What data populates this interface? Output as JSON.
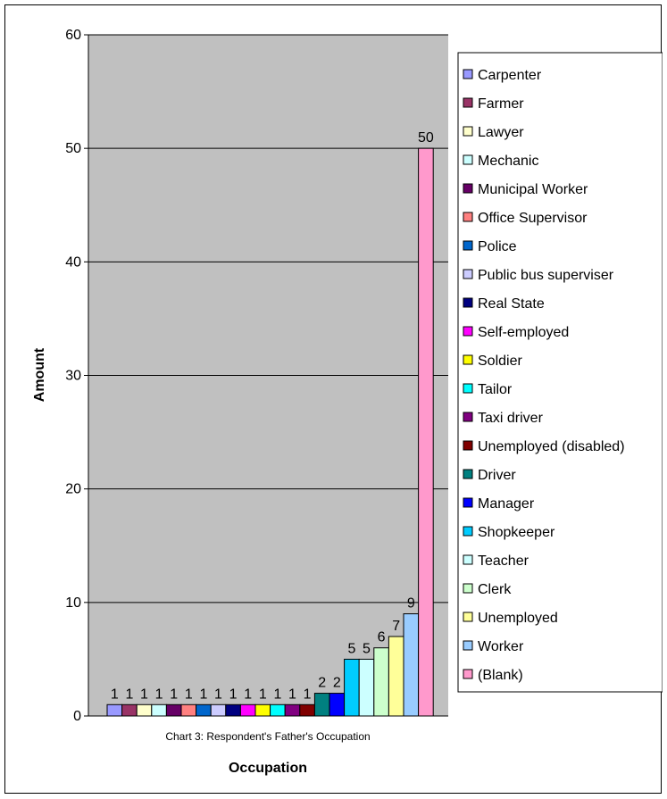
{
  "chart_data": {
    "type": "bar",
    "title": "Chart 3: Respondent's Father's Occupation",
    "xlabel": "Occupation",
    "ylabel": "Amount",
    "ylim": [
      0,
      60
    ],
    "yticks": [
      0,
      10,
      20,
      30,
      40,
      50,
      60
    ],
    "grid": true,
    "legend_position": "right",
    "plot_background": "#c0c0c0",
    "categories": [
      "Carpenter",
      "Farmer",
      "Lawyer",
      "Mechanic",
      "Municipal Worker",
      "Office Supervisor",
      "Police",
      "Public bus superviser",
      "Real State",
      "Self-employed",
      "Soldier",
      "Tailor",
      "Taxi driver",
      "Unemployed (disabled)",
      "Driver",
      "Manager",
      "Shopkeeper",
      "Teacher",
      "Clerk",
      "Unemployed",
      "Worker",
      "(Blank)"
    ],
    "values": [
      1,
      1,
      1,
      1,
      1,
      1,
      1,
      1,
      1,
      1,
      1,
      1,
      1,
      1,
      2,
      2,
      5,
      5,
      6,
      7,
      9,
      50
    ],
    "colors": [
      "#9999ff",
      "#993366",
      "#ffffcc",
      "#ccffff",
      "#660066",
      "#ff8080",
      "#0066cc",
      "#ccccff",
      "#000080",
      "#ff00ff",
      "#ffff00",
      "#00ffff",
      "#800080",
      "#800000",
      "#008080",
      "#0000ff",
      "#00ccff",
      "#ccffff",
      "#ccffcc",
      "#ffff99",
      "#99ccff",
      "#ff99cc"
    ]
  }
}
